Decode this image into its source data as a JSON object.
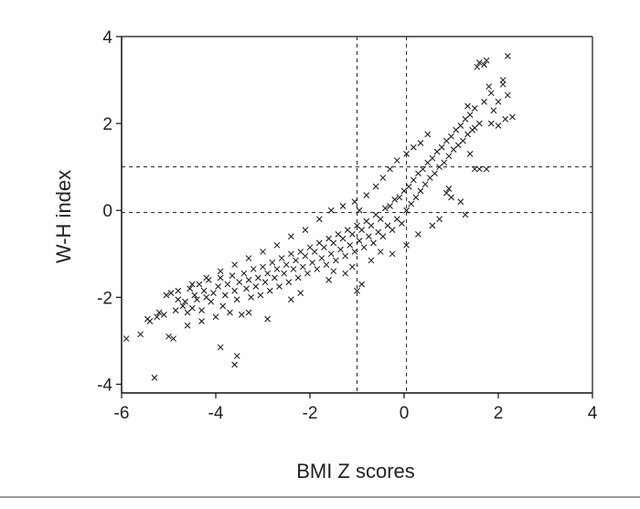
{
  "chart_data": {
    "type": "scatter",
    "title": "",
    "xlabel": "BMI Z scores",
    "ylabel": "W-H index",
    "xlim": [
      -6,
      4
    ],
    "ylim": [
      -4.2,
      4
    ],
    "xticks": [
      "-6",
      "-4",
      "-2",
      "0",
      "2",
      "4"
    ],
    "xtick_values": [
      -6,
      -4,
      -2,
      0,
      2,
      4
    ],
    "yticks": [
      "4",
      "2",
      "0",
      "-2",
      "-4"
    ],
    "ytick_values": [
      4,
      2,
      0,
      -2,
      -4
    ],
    "marker": "x",
    "grid": false,
    "legend": "none",
    "reference_lines": {
      "vertical": [
        {
          "x": -1.0,
          "y_range": [
            -4.2,
            4
          ]
        },
        {
          "x": 0.05,
          "y_range": [
            -4.2,
            4
          ]
        }
      ],
      "horizontal": [
        {
          "y": 1.0,
          "x_range": [
            -6,
            4
          ]
        },
        {
          "y": -0.05,
          "x_range": [
            -6,
            4
          ]
        }
      ]
    },
    "series": [
      {
        "points": [
          [
            -5.9,
            -2.95
          ],
          [
            -5.6,
            -2.85
          ],
          [
            -5.45,
            -2.5
          ],
          [
            -5.4,
            -2.55
          ],
          [
            -5.25,
            -2.45
          ],
          [
            -5.2,
            -2.35
          ],
          [
            -5.3,
            -3.85
          ],
          [
            -5.1,
            -2.4
          ],
          [
            -5.0,
            -2.9
          ],
          [
            -5.05,
            -1.95
          ],
          [
            -4.95,
            -1.9
          ],
          [
            -4.85,
            -2.3
          ],
          [
            -4.8,
            -2.05
          ],
          [
            -4.7,
            -2.2
          ],
          [
            -4.65,
            -2.1
          ],
          [
            -4.6,
            -2.35
          ],
          [
            -4.55,
            -1.8
          ],
          [
            -4.5,
            -2.25
          ],
          [
            -4.45,
            -1.95
          ],
          [
            -4.4,
            -2.05
          ],
          [
            -4.35,
            -1.7
          ],
          [
            -4.3,
            -2.3
          ],
          [
            -4.25,
            -1.85
          ],
          [
            -4.2,
            -2.0
          ],
          [
            -4.15,
            -1.6
          ],
          [
            -4.1,
            -2.1
          ],
          [
            -4.05,
            -1.9
          ],
          [
            -4.0,
            -2.45
          ],
          [
            -3.95,
            -1.75
          ],
          [
            -3.9,
            -1.55
          ],
          [
            -3.85,
            -2.2
          ],
          [
            -3.8,
            -1.95
          ],
          [
            -3.75,
            -1.7
          ],
          [
            -3.7,
            -2.35
          ],
          [
            -3.65,
            -1.5
          ],
          [
            -3.6,
            -1.85
          ],
          [
            -3.55,
            -2.05
          ],
          [
            -3.5,
            -1.65
          ],
          [
            -3.45,
            -2.4
          ],
          [
            -3.4,
            -1.45
          ],
          [
            -3.35,
            -1.8
          ],
          [
            -3.3,
            -1.6
          ],
          [
            -3.25,
            -2.0
          ],
          [
            -3.2,
            -1.35
          ],
          [
            -3.15,
            -1.75
          ],
          [
            -3.1,
            -1.55
          ],
          [
            -3.05,
            -1.95
          ],
          [
            -3.0,
            -1.3
          ],
          [
            -2.95,
            -1.65
          ],
          [
            -2.9,
            -1.45
          ],
          [
            -2.85,
            -1.85
          ],
          [
            -2.8,
            -1.2
          ],
          [
            -2.75,
            -1.55
          ],
          [
            -2.7,
            -1.35
          ],
          [
            -2.65,
            -1.75
          ],
          [
            -2.6,
            -1.1
          ],
          [
            -2.55,
            -1.45
          ],
          [
            -2.5,
            -1.25
          ],
          [
            -2.45,
            -1.65
          ],
          [
            -2.4,
            -1.0
          ],
          [
            -2.35,
            -1.35
          ],
          [
            -2.3,
            -1.15
          ],
          [
            -2.25,
            -1.55
          ],
          [
            -2.2,
            -0.95
          ],
          [
            -2.15,
            -1.3
          ],
          [
            -2.1,
            -1.05
          ],
          [
            -2.05,
            -1.45
          ],
          [
            -2.0,
            -0.85
          ],
          [
            -1.95,
            -1.2
          ],
          [
            -1.9,
            -0.95
          ],
          [
            -1.85,
            -1.35
          ],
          [
            -1.8,
            -0.75
          ],
          [
            -1.75,
            -1.1
          ],
          [
            -1.7,
            -0.85
          ],
          [
            -1.65,
            -1.25
          ],
          [
            -1.6,
            -0.65
          ],
          [
            -1.55,
            -1.0
          ],
          [
            -1.5,
            -0.75
          ],
          [
            -1.45,
            -1.15
          ],
          [
            -1.4,
            -0.55
          ],
          [
            -1.35,
            -0.9
          ],
          [
            -1.3,
            -0.65
          ],
          [
            -1.25,
            -1.05
          ],
          [
            -1.2,
            -0.45
          ],
          [
            -1.15,
            -0.8
          ],
          [
            -1.1,
            -0.55
          ],
          [
            -1.05,
            -0.95
          ],
          [
            -1.0,
            -0.35
          ],
          [
            -0.95,
            -0.7
          ],
          [
            -0.9,
            -0.45
          ],
          [
            -0.85,
            -0.85
          ],
          [
            -0.8,
            -0.25
          ],
          [
            -0.75,
            -0.6
          ],
          [
            -0.7,
            -0.35
          ],
          [
            -0.65,
            -0.75
          ],
          [
            -0.6,
            -0.1
          ],
          [
            -0.55,
            -0.5
          ],
          [
            -0.5,
            -0.2
          ],
          [
            -0.45,
            -0.6
          ],
          [
            -0.4,
            0.05
          ],
          [
            -0.35,
            -0.35
          ],
          [
            -0.3,
            0.1
          ],
          [
            -0.25,
            -0.45
          ],
          [
            -0.2,
            0.25
          ],
          [
            -0.15,
            -0.2
          ],
          [
            -0.1,
            0.3
          ],
          [
            -0.05,
            -0.3
          ],
          [
            0.0,
            0.45
          ],
          [
            0.05,
            0.0
          ],
          [
            0.1,
            0.55
          ],
          [
            0.15,
            0.15
          ],
          [
            0.2,
            0.7
          ],
          [
            0.25,
            0.3
          ],
          [
            0.3,
            0.85
          ],
          [
            0.35,
            0.45
          ],
          [
            0.4,
            0.95
          ],
          [
            0.45,
            0.6
          ],
          [
            0.5,
            1.1
          ],
          [
            0.55,
            0.75
          ],
          [
            0.6,
            1.2
          ],
          [
            0.65,
            0.85
          ],
          [
            0.7,
            1.35
          ],
          [
            0.75,
            1.0
          ],
          [
            0.8,
            1.45
          ],
          [
            0.85,
            1.1
          ],
          [
            0.9,
            1.6
          ],
          [
            0.95,
            1.25
          ],
          [
            1.0,
            1.7
          ],
          [
            1.05,
            1.4
          ],
          [
            1.1,
            1.85
          ],
          [
            1.15,
            1.5
          ],
          [
            1.2,
            1.95
          ],
          [
            1.25,
            1.6
          ],
          [
            1.3,
            2.1
          ],
          [
            1.35,
            1.75
          ],
          [
            1.4,
            2.2
          ],
          [
            1.45,
            1.85
          ],
          [
            1.5,
            2.35
          ],
          [
            -3.9,
            -3.15
          ],
          [
            -3.6,
            -3.55
          ],
          [
            -3.55,
            -3.35
          ],
          [
            -4.9,
            -2.95
          ],
          [
            -4.6,
            -2.65
          ],
          [
            -4.3,
            -2.55
          ],
          [
            -3.3,
            -2.35
          ],
          [
            -2.9,
            -2.5
          ],
          [
            -2.4,
            -2.05
          ],
          [
            -2.2,
            -1.9
          ],
          [
            -1.6,
            -1.6
          ],
          [
            -1.5,
            -1.4
          ],
          [
            -1.25,
            -1.45
          ],
          [
            -1.1,
            -1.3
          ],
          [
            -0.7,
            -1.15
          ],
          [
            -0.5,
            -0.95
          ],
          [
            -0.25,
            -1.0
          ],
          [
            0.05,
            -0.8
          ],
          [
            0.3,
            -0.55
          ],
          [
            0.6,
            -0.35
          ],
          [
            0.75,
            -0.2
          ],
          [
            1.3,
            -0.1
          ],
          [
            1.5,
            0.95
          ],
          [
            1.6,
            0.95
          ],
          [
            1.75,
            0.95
          ],
          [
            0.95,
            0.5
          ],
          [
            1.0,
            0.3
          ],
          [
            0.9,
            0.4
          ],
          [
            1.2,
            0.2
          ],
          [
            1.4,
            1.3
          ],
          [
            1.5,
            1.9
          ],
          [
            1.6,
            2.0
          ],
          [
            1.7,
            2.5
          ],
          [
            1.85,
            2.7
          ],
          [
            1.9,
            2.3
          ],
          [
            2.0,
            2.5
          ],
          [
            2.1,
            2.9
          ],
          [
            2.0,
            1.95
          ],
          [
            2.15,
            2.1
          ],
          [
            2.2,
            2.65
          ],
          [
            2.3,
            2.15
          ],
          [
            1.85,
            2.0
          ],
          [
            1.8,
            2.85
          ],
          [
            1.7,
            3.35
          ],
          [
            1.75,
            3.45
          ],
          [
            1.6,
            3.4
          ],
          [
            1.55,
            3.3
          ],
          [
            2.1,
            3.0
          ],
          [
            2.2,
            3.55
          ],
          [
            1.35,
            2.4
          ],
          [
            -1.0,
            -1.85
          ],
          [
            -0.9,
            -1.7
          ],
          [
            -0.95,
            0.0
          ],
          [
            -1.05,
            0.2
          ],
          [
            -0.6,
            0.55
          ],
          [
            -0.45,
            0.75
          ],
          [
            -0.3,
            0.95
          ],
          [
            -0.15,
            1.15
          ],
          [
            0.05,
            1.3
          ],
          [
            0.2,
            1.45
          ],
          [
            0.35,
            1.55
          ],
          [
            0.5,
            1.75
          ],
          [
            -0.8,
            0.35
          ],
          [
            -1.3,
            0.1
          ],
          [
            -1.55,
            0.0
          ],
          [
            -1.8,
            -0.2
          ],
          [
            -2.1,
            -0.45
          ],
          [
            -2.4,
            -0.6
          ],
          [
            -2.7,
            -0.8
          ],
          [
            -3.0,
            -0.95
          ],
          [
            -3.3,
            -1.1
          ],
          [
            -3.6,
            -1.25
          ],
          [
            -3.9,
            -1.4
          ],
          [
            -4.2,
            -1.55
          ],
          [
            -4.5,
            -1.7
          ],
          [
            -4.8,
            -1.85
          ]
        ]
      }
    ]
  }
}
